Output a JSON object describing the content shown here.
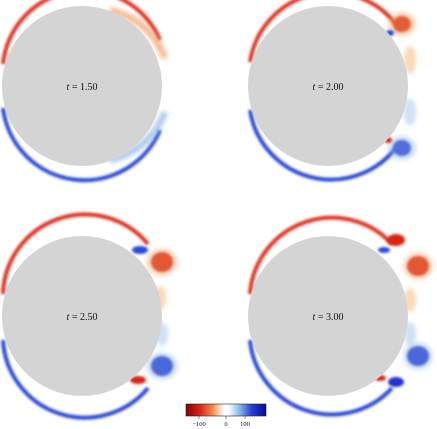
{
  "panels": [
    {
      "id": "p1",
      "var": "t",
      "eq": " = ",
      "value": "1.50"
    },
    {
      "id": "p2",
      "var": "t",
      "eq": " = ",
      "value": "2.00"
    },
    {
      "id": "p3",
      "var": "t",
      "eq": " = ",
      "value": "2.50"
    },
    {
      "id": "p4",
      "var": "t",
      "eq": " = ",
      "value": "3.00"
    }
  ],
  "colorbar": {
    "ticks": [
      "−100",
      "0",
      "100"
    ],
    "colors": {
      "neg_dark": "#8a0000",
      "neg": "#e8281e",
      "neg_light": "#f4a050",
      "zero": "#ffffff",
      "pos_light": "#9cc8e8",
      "pos": "#2a3cd8",
      "pos_dark": "#0a0a8a"
    }
  },
  "colors": {
    "cylinder": "#d4d4d4",
    "background": "#ffffff"
  }
}
